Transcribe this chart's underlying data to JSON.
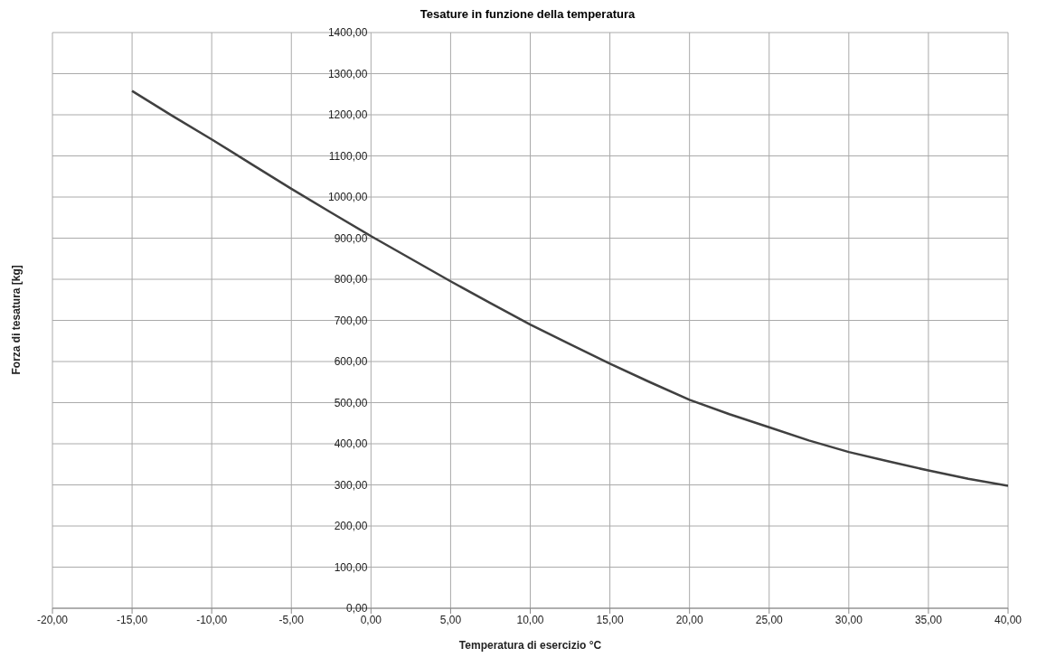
{
  "chart_data": {
    "type": "line",
    "title": "Tesature in funzione della temperatura",
    "xlabel": "Temperatura di esercizio °C",
    "ylabel": "Forza di tesatura [kg]",
    "x": [
      -15,
      -12.5,
      -10,
      -7.5,
      -5,
      -2.5,
      0,
      2.5,
      5,
      7.5,
      10,
      12.5,
      15,
      17.5,
      20,
      22.5,
      25,
      27.5,
      30,
      32.5,
      35,
      37.5,
      40
    ],
    "series": [
      {
        "color": "#404040",
        "values": [
          1258,
          1198,
          1140,
          1080,
          1020,
          962,
          905,
          850,
          795,
          742,
          690,
          642,
          595,
          550,
          507,
          472,
          440,
          408,
          380,
          357,
          335,
          315,
          298
        ]
      }
    ],
    "xlim": [
      -20,
      40
    ],
    "xticks": [
      {
        "value": -20,
        "label": "-20,00"
      },
      {
        "value": -15,
        "label": "-15,00"
      },
      {
        "value": -10,
        "label": "-10,00"
      },
      {
        "value": -5,
        "label": "-5,00"
      },
      {
        "value": 0,
        "label": "0,00"
      },
      {
        "value": 5,
        "label": "5,00"
      },
      {
        "value": 10,
        "label": "10,00"
      },
      {
        "value": 15,
        "label": "15,00"
      },
      {
        "value": 20,
        "label": "20,00"
      },
      {
        "value": 25,
        "label": "25,00"
      },
      {
        "value": 30,
        "label": "30,00"
      },
      {
        "value": 35,
        "label": "35,00"
      },
      {
        "value": 40,
        "label": "40,00"
      }
    ],
    "ylim": [
      0,
      1400
    ],
    "yticks": [
      {
        "value": 0,
        "label": "0,00"
      },
      {
        "value": 100,
        "label": "100,00"
      },
      {
        "value": 200,
        "label": "200,00"
      },
      {
        "value": 300,
        "label": "300,00"
      },
      {
        "value": 400,
        "label": "400,00"
      },
      {
        "value": 500,
        "label": "500,00"
      },
      {
        "value": 600,
        "label": "600,00"
      },
      {
        "value": 700,
        "label": "700,00"
      },
      {
        "value": 800,
        "label": "800,00"
      },
      {
        "value": 900,
        "label": "900,00"
      },
      {
        "value": 1000,
        "label": "1000,00"
      },
      {
        "value": 1100,
        "label": "1100,00"
      },
      {
        "value": 1200,
        "label": "1200,00"
      },
      {
        "value": 1300,
        "label": "1300,00"
      },
      {
        "value": 1400,
        "label": "1400,00"
      }
    ],
    "grid": true,
    "legend": false,
    "marker": "none",
    "line_style": "solid"
  }
}
